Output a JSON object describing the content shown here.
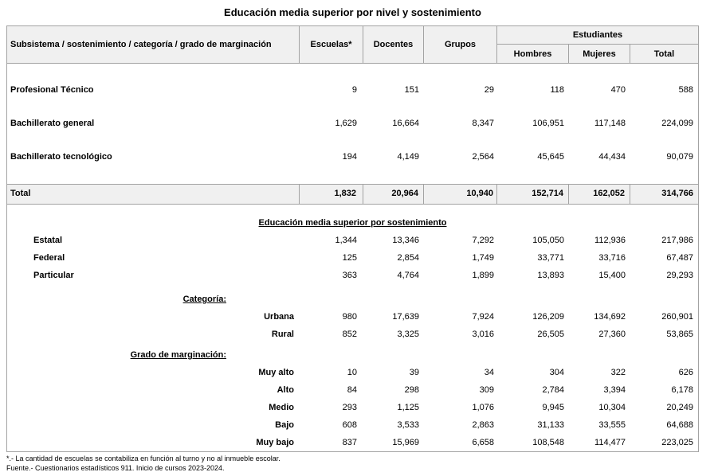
{
  "title": "Educación media superior por nivel y sostenimiento",
  "table": {
    "header": {
      "col1": "Subsistema / sostenimiento / categoría / grado de marginación",
      "escuelas": "Escuelas*",
      "docentes": "Docentes",
      "grupos": "Grupos",
      "estudiantes": "Estudiantes",
      "hombres": "Hombres",
      "mujeres": "Mujeres",
      "total": "Total"
    },
    "levels": [
      {
        "label": "Profesional Técnico",
        "escuelas": "9",
        "docentes": "151",
        "grupos": "29",
        "hombres": "118",
        "mujeres": "470",
        "total": "588"
      },
      {
        "label": "Bachillerato general",
        "escuelas": "1,629",
        "docentes": "16,664",
        "grupos": "8,347",
        "hombres": "106,951",
        "mujeres": "117,148",
        "total": "224,099"
      },
      {
        "label": "Bachillerato tecnológico",
        "escuelas": "194",
        "docentes": "4,149",
        "grupos": "2,564",
        "hombres": "45,645",
        "mujeres": "44,434",
        "total": "90,079"
      }
    ],
    "total_row": {
      "label": "Total",
      "escuelas": "1,832",
      "docentes": "20,964",
      "grupos": "10,940",
      "hombres": "152,714",
      "mujeres": "162,052",
      "total": "314,766"
    },
    "sustainment": {
      "heading": "Educación media superior por sostenimiento",
      "rows": [
        {
          "label": "Estatal",
          "escuelas": "1,344",
          "docentes": "13,346",
          "grupos": "7,292",
          "hombres": "105,050",
          "mujeres": "112,936",
          "total": "217,986"
        },
        {
          "label": "Federal",
          "escuelas": "125",
          "docentes": "2,854",
          "grupos": "1,749",
          "hombres": "33,771",
          "mujeres": "33,716",
          "total": "67,487"
        },
        {
          "label": "Particular",
          "escuelas": "363",
          "docentes": "4,764",
          "grupos": "1,899",
          "hombres": "13,893",
          "mujeres": "15,400",
          "total": "29,293"
        }
      ]
    },
    "category": {
      "heading": "Categoría:",
      "rows": [
        {
          "label": "Urbana",
          "escuelas": "980",
          "docentes": "17,639",
          "grupos": "7,924",
          "hombres": "126,209",
          "mujeres": "134,692",
          "total": "260,901"
        },
        {
          "label": "Rural",
          "escuelas": "852",
          "docentes": "3,325",
          "grupos": "3,016",
          "hombres": "26,505",
          "mujeres": "27,360",
          "total": "53,865"
        }
      ]
    },
    "marginalization": {
      "heading": "Grado de marginación:",
      "rows": [
        {
          "label": "Muy alto",
          "escuelas": "10",
          "docentes": "39",
          "grupos": "34",
          "hombres": "304",
          "mujeres": "322",
          "total": "626"
        },
        {
          "label": "Alto",
          "escuelas": "84",
          "docentes": "298",
          "grupos": "309",
          "hombres": "2,784",
          "mujeres": "3,394",
          "total": "6,178"
        },
        {
          "label": "Medio",
          "escuelas": "293",
          "docentes": "1,125",
          "grupos": "1,076",
          "hombres": "9,945",
          "mujeres": "10,304",
          "total": "20,249"
        },
        {
          "label": "Bajo",
          "escuelas": "608",
          "docentes": "3,533",
          "grupos": "2,863",
          "hombres": "31,133",
          "mujeres": "33,555",
          "total": "64,688"
        },
        {
          "label": "Muy bajo",
          "escuelas": "837",
          "docentes": "15,969",
          "grupos": "6,658",
          "hombres": "108,548",
          "mujeres": "114,477",
          "total": "223,025"
        }
      ]
    }
  },
  "footnotes": [
    "*.- La cantidad de escuelas se contabiliza en función al turno y no al inmueble escolar.",
    "Fuente.- Cuestionarios estadísticos 911. Inicio de cursos 2023-2024."
  ],
  "colors": {
    "header_bg": "#f0f0f0",
    "border": "#a3a3a3",
    "text": "#000000"
  }
}
